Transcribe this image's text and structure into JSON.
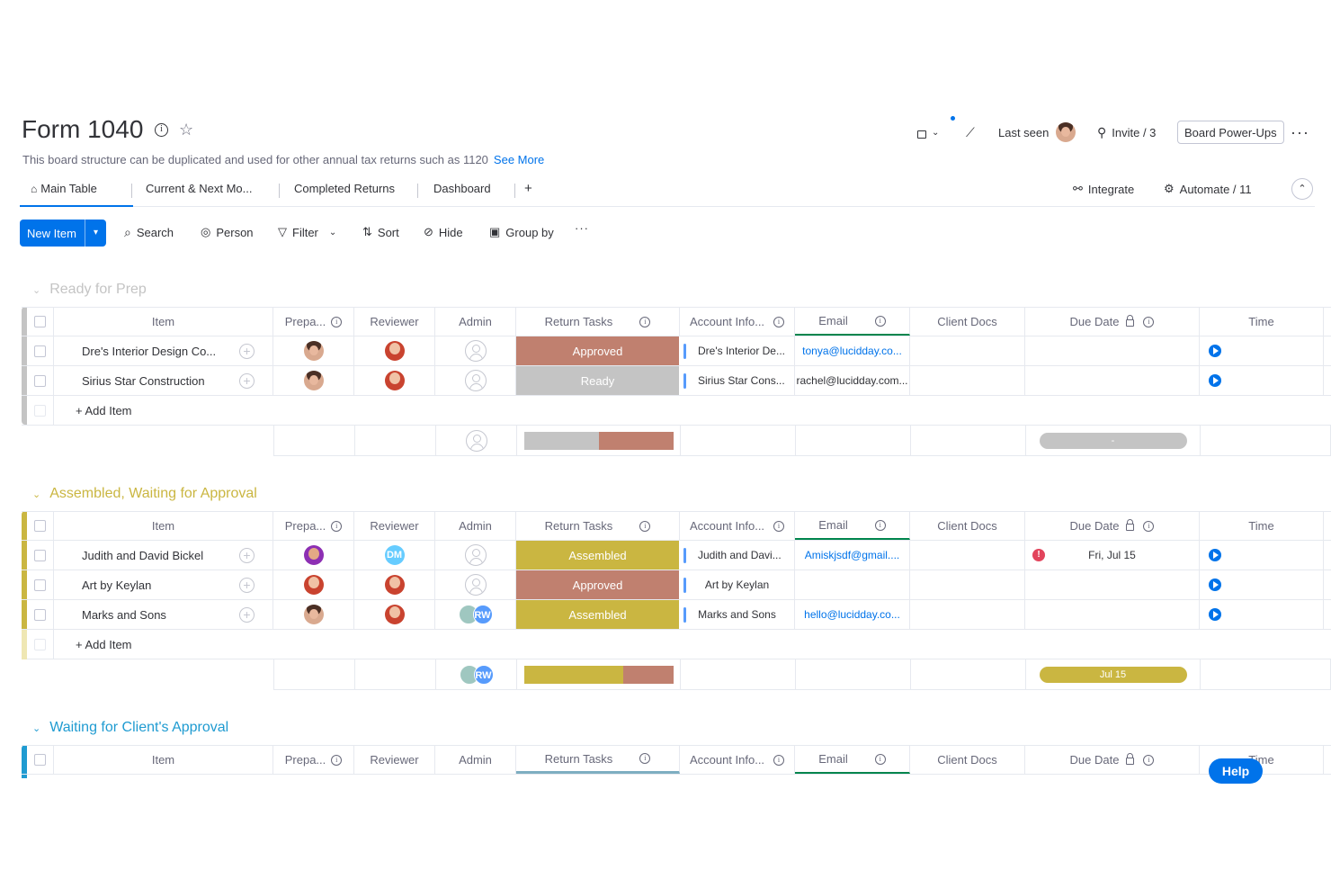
{
  "board": {
    "title": "Form 1040",
    "description": "This board structure can be duplicated and used for other annual tax returns such as 1120",
    "see_more": "See More"
  },
  "topbar": {
    "last_seen": "Last seen",
    "invite": "Invite / 3",
    "power_ups": "Board Power-Ups"
  },
  "tabs": [
    {
      "label": "Main Table",
      "active": true
    },
    {
      "label": "Current & Next Mo..."
    },
    {
      "label": "Completed Returns"
    },
    {
      "label": "Dashboard"
    },
    {
      "label": "+"
    }
  ],
  "integrations": {
    "integrate": "Integrate",
    "automate": "Automate / 11"
  },
  "toolbar": {
    "new_item": "New Item",
    "search": "Search",
    "person": "Person",
    "filter": "Filter",
    "sort": "Sort",
    "hide": "Hide",
    "group_by": "Group by"
  },
  "columns": {
    "item": "Item",
    "preparer": "Prepa...",
    "reviewer": "Reviewer",
    "admin": "Admin",
    "return_tasks": "Return Tasks",
    "account_info": "Account Info...",
    "email": "Email",
    "client_docs": "Client Docs",
    "due_date": "Due Date",
    "time": "Time"
  },
  "colors": {
    "approved": "#c0806f",
    "ready": "#c4c4c4",
    "assembled": "#cab641",
    "blue_group": "#1f9bd1",
    "accent": "#0073ea"
  },
  "groups": [
    {
      "title": "Ready for Prep",
      "color": "#c4c4c4",
      "add_item": "+ Add Item",
      "rows": [
        {
          "item": "Dre's Interior Design Co...",
          "status": "Approved",
          "account": "Dre's Interior De...",
          "email": "tonya@lucidday.co...",
          "email_link": true,
          "due": ""
        },
        {
          "item": "Sirius Star Construction",
          "status": "Ready",
          "account": "Sirius Star Cons...",
          "email": "rachel@lucidday.com...",
          "email_link": false,
          "due": ""
        }
      ],
      "summary_due": "-"
    },
    {
      "title": "Assembled, Waiting for Approval",
      "color": "#cab641",
      "add_item": "+ Add Item",
      "rows": [
        {
          "item": "Judith and David Bickel",
          "status": "Assembled",
          "account": "Judith and Davi...",
          "email": "Amiskjsdf@gmail....",
          "email_link": true,
          "due": "Fri, Jul 15",
          "reviewer_initials": "DM"
        },
        {
          "item": "Art by Keylan",
          "status": "Approved",
          "account": "Art by Keylan",
          "email": "",
          "email_link": true,
          "due": ""
        },
        {
          "item": "Marks and Sons",
          "status": "Assembled",
          "account": "Marks and Sons",
          "email": "hello@lucidday.co...",
          "email_link": true,
          "due": "",
          "admin_initials": "RW"
        }
      ],
      "summary_due": "Jul 15",
      "summary_admin_initials": "RW"
    },
    {
      "title": "Waiting for Client's Approval",
      "color": "#1f9bd1"
    }
  ],
  "help": "Help"
}
